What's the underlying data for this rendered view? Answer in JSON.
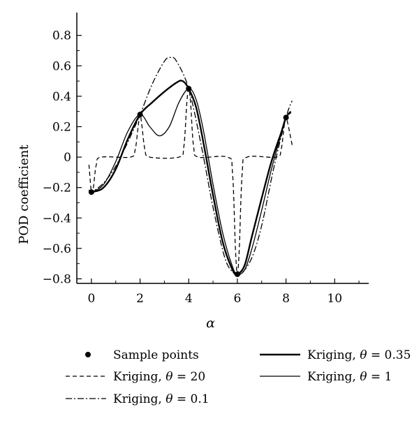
{
  "chart_data": {
    "type": "line",
    "title": "",
    "xlabel": "α",
    "ylabel": "POD coefficient",
    "xlim": [
      -0.6,
      11.4
    ],
    "ylim": [
      -0.83,
      0.95
    ],
    "xticks": [
      0,
      2,
      4,
      6,
      8,
      10
    ],
    "xtick_labels": [
      "0",
      "2",
      "4",
      "6",
      "8",
      "10"
    ],
    "yticks": [
      -0.8,
      -0.6,
      -0.4,
      -0.2,
      0,
      0.2,
      0.4,
      0.6,
      0.8
    ],
    "ytick_labels": [
      "−0.8",
      "−0.6",
      "−0.4",
      "−0.2",
      "0",
      "0.2",
      "0.4",
      "0.6",
      "0.8"
    ],
    "grid": false,
    "legend_position": "bottom",
    "series": [
      {
        "name": "Sample points",
        "kind": "scatter",
        "legend_text": "Sample points",
        "x": [
          0,
          2,
          4,
          6,
          8
        ],
        "y": [
          -0.23,
          0.28,
          0.45,
          -0.77,
          0.26
        ]
      },
      {
        "name": "Kriging, θ = 0.35",
        "kind": "line",
        "style": "thick-solid",
        "legend_prefix": "Kriging, ",
        "legend_theta": "θ",
        "legend_suffix": " = 0.35",
        "x": [
          -0.1,
          0,
          0.5,
          1,
          1.5,
          2,
          2.5,
          3,
          3.5,
          3.75,
          4,
          4.3,
          4.6,
          5,
          5.4,
          5.8,
          6,
          6.3,
          6.6,
          7,
          7.4,
          7.8,
          8,
          8.2
        ],
        "y": [
          -0.225,
          -0.23,
          -0.2,
          -0.08,
          0.12,
          0.28,
          0.36,
          0.43,
          0.49,
          0.5,
          0.45,
          0.33,
          0.1,
          -0.25,
          -0.56,
          -0.74,
          -0.77,
          -0.71,
          -0.52,
          -0.27,
          -0.03,
          0.16,
          0.26,
          0.3
        ]
      },
      {
        "name": "Kriging, θ = 20",
        "kind": "line",
        "style": "dashed",
        "legend_prefix": "Kriging, ",
        "legend_theta": "θ",
        "legend_suffix": " = 20",
        "x": [
          -0.1,
          0,
          0.08,
          0.2,
          0.4,
          1.6,
          1.8,
          1.92,
          2,
          2.08,
          2.2,
          2.4,
          3.6,
          3.8,
          3.92,
          4,
          4.08,
          4.2,
          4.4,
          5.6,
          5.8,
          5.92,
          6,
          6.08,
          6.2,
          6.4,
          7.6,
          7.8,
          7.92,
          8,
          8.1,
          8.25
        ],
        "y": [
          -0.05,
          -0.23,
          -0.2,
          -0.05,
          0,
          0,
          0.05,
          0.2,
          0.28,
          0.2,
          0.05,
          0,
          0,
          0.07,
          0.35,
          0.45,
          0.35,
          0.07,
          0,
          0,
          -0.1,
          -0.6,
          -0.77,
          -0.6,
          -0.1,
          0,
          0,
          0.05,
          0.2,
          0.26,
          0.2,
          0.08
        ]
      },
      {
        "name": "Kriging, θ = 1",
        "kind": "line",
        "style": "solid",
        "legend_prefix": "Kriging, ",
        "legend_theta": "θ",
        "legend_suffix": " = 1",
        "x": [
          -0.1,
          0,
          0.5,
          1,
          1.5,
          2,
          2.4,
          2.8,
          3.2,
          3.6,
          4,
          4.3,
          4.6,
          5,
          5.4,
          5.8,
          6,
          6.3,
          6.6,
          7,
          7.4,
          7.8,
          8,
          8.2
        ],
        "y": [
          -0.225,
          -0.23,
          -0.18,
          -0.03,
          0.17,
          0.28,
          0.2,
          0.14,
          0.2,
          0.36,
          0.45,
          0.38,
          0.18,
          -0.18,
          -0.5,
          -0.72,
          -0.77,
          -0.74,
          -0.6,
          -0.35,
          -0.08,
          0.15,
          0.26,
          0.29
        ]
      },
      {
        "name": "Kriging, θ = 0.1",
        "kind": "line",
        "style": "dash-dot",
        "legend_prefix": "Kriging, ",
        "legend_theta": "θ",
        "legend_suffix": " = 0.1",
        "x": [
          -0.1,
          0,
          0.5,
          1,
          1.5,
          2,
          2.5,
          3,
          3.25,
          3.5,
          4,
          4.5,
          5,
          5.5,
          5.9,
          6,
          6.2,
          6.6,
          7,
          7.5,
          8,
          8.25
        ],
        "y": [
          -0.215,
          -0.23,
          -0.17,
          -0.06,
          0.1,
          0.28,
          0.48,
          0.63,
          0.655,
          0.63,
          0.45,
          0.09,
          -0.33,
          -0.67,
          -0.77,
          -0.77,
          -0.76,
          -0.66,
          -0.45,
          -0.07,
          0.26,
          0.37
        ]
      }
    ]
  }
}
